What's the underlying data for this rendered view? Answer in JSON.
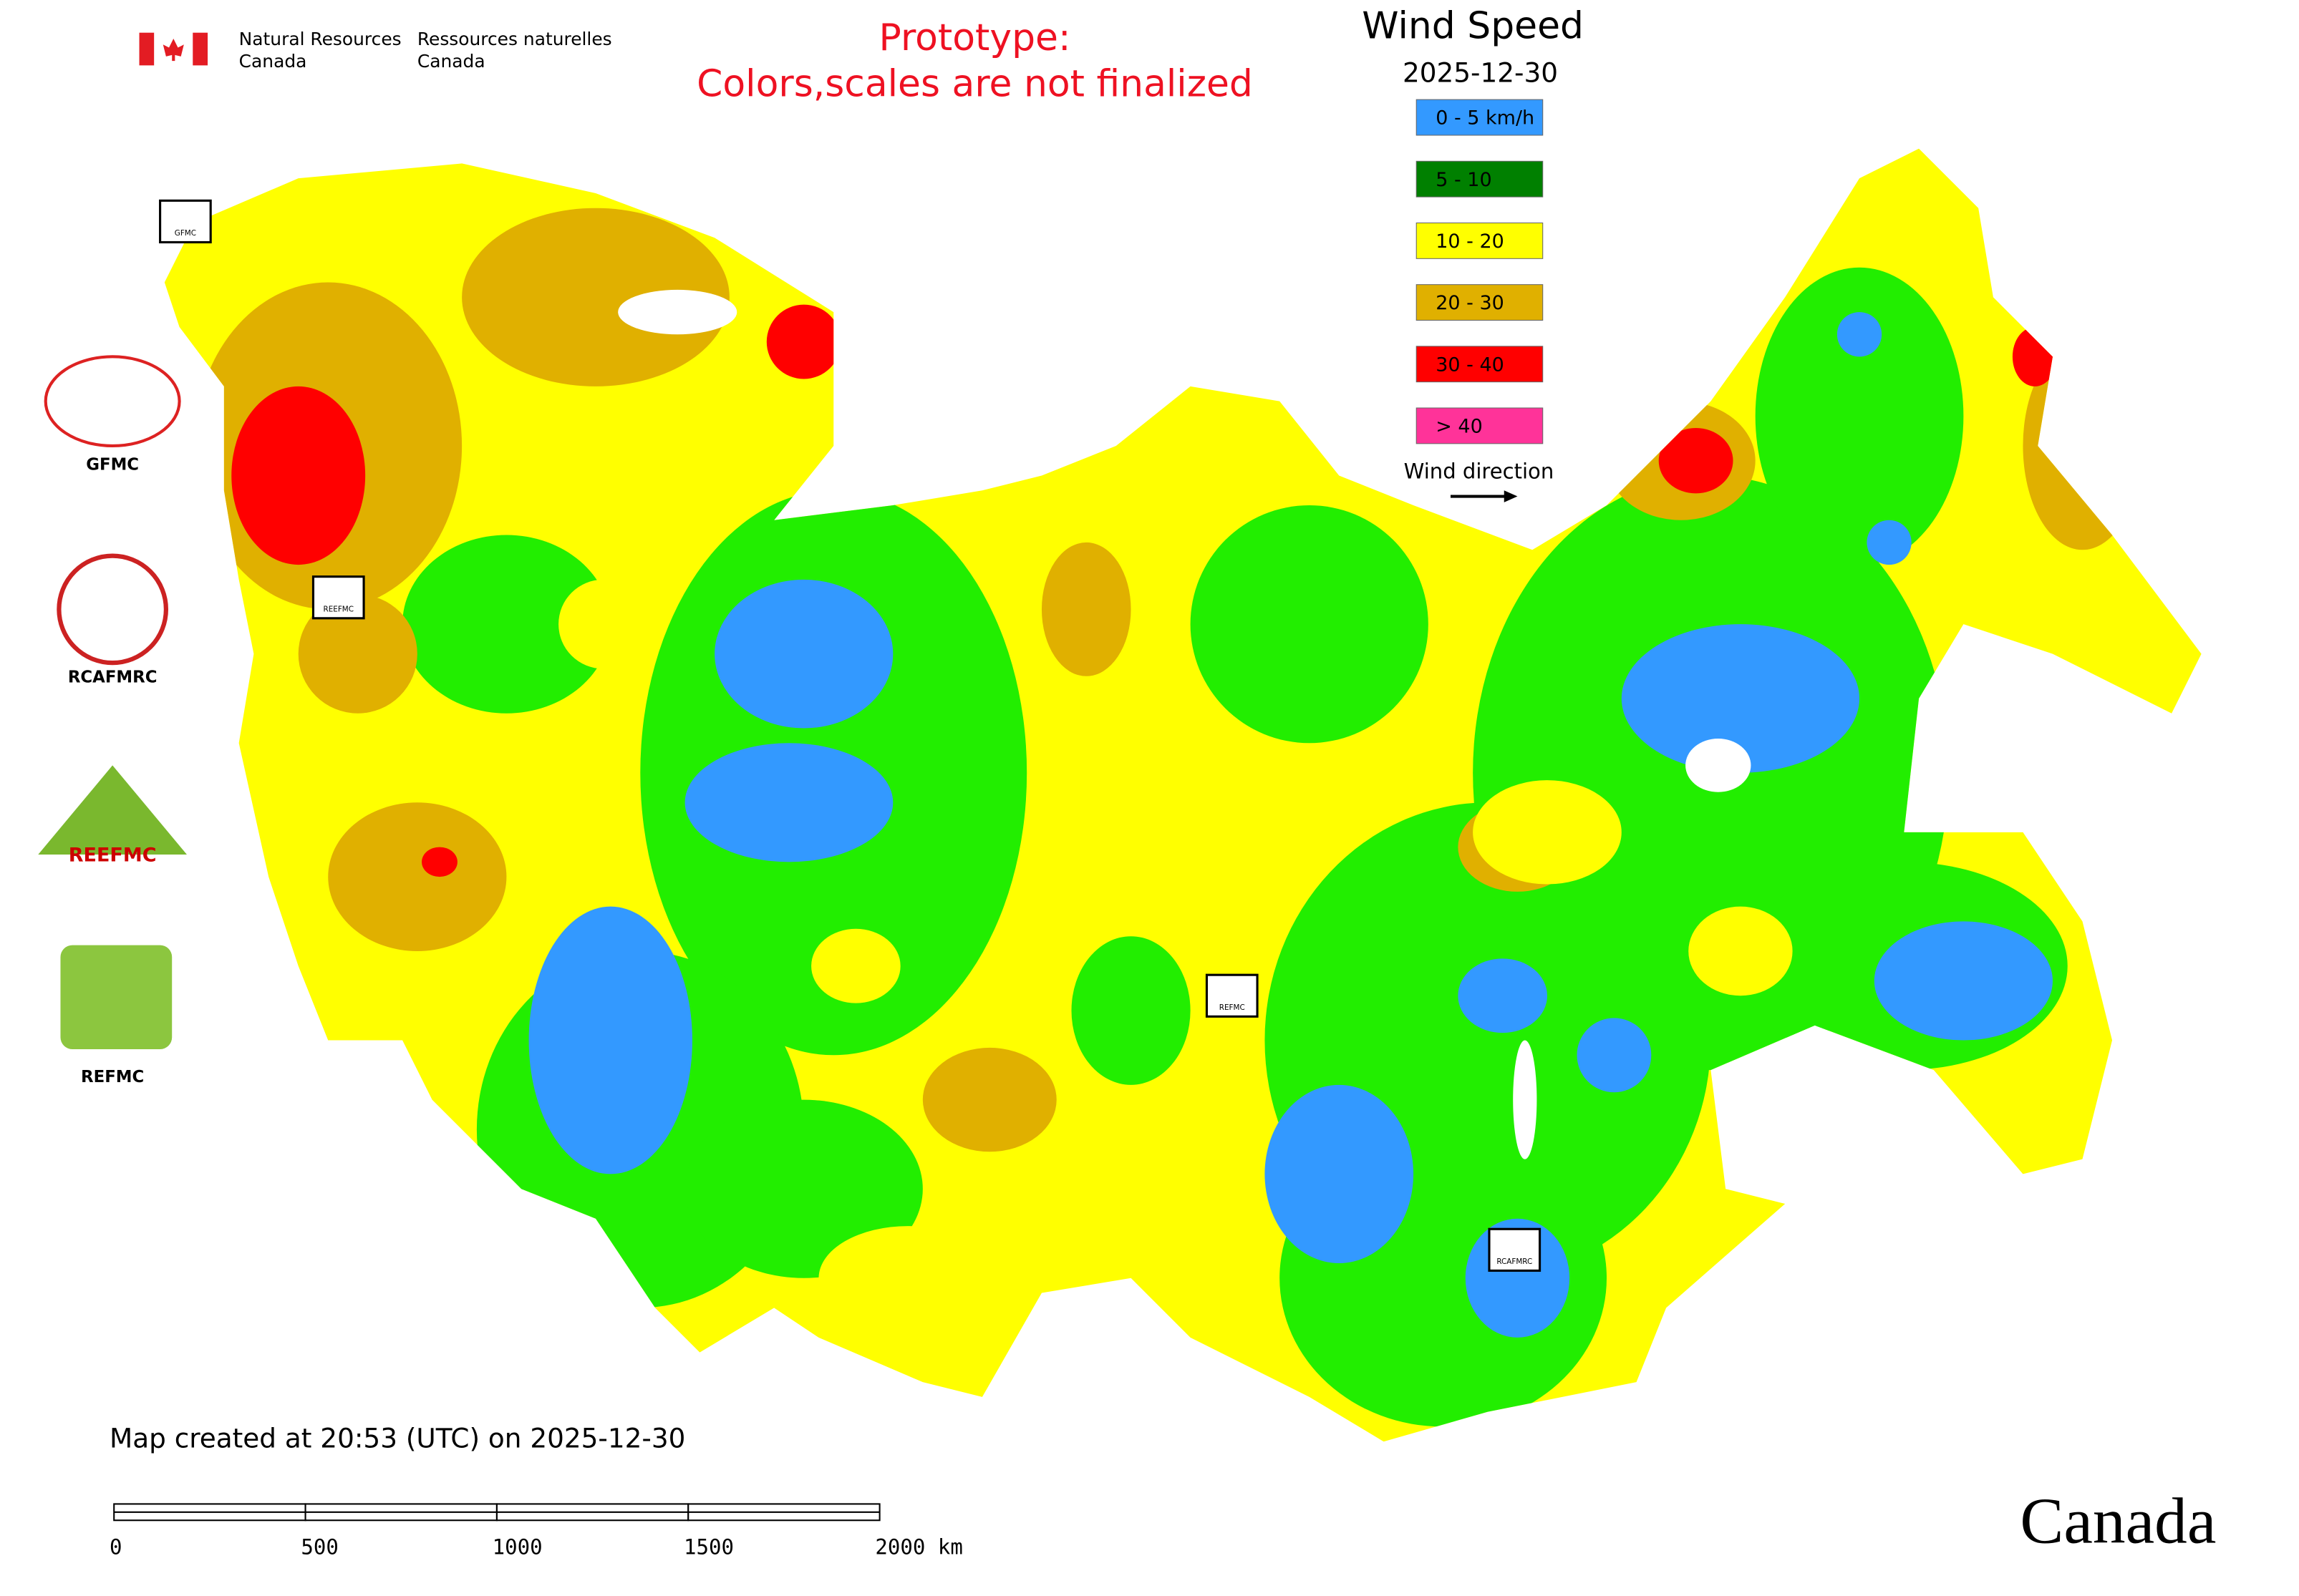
{
  "header": {
    "department_en": [
      "Natural Resources",
      "Canada"
    ],
    "department_fr": [
      "Ressources naturelles",
      "Canada"
    ],
    "notice": [
      "Prototype:",
      "Colors,scales are not finalized"
    ]
  },
  "map": {
    "title": "Wind Speed",
    "date": "2025-12-30",
    "legend": [
      {
        "label": "0 - 5 km/h",
        "color": "#3399ff"
      },
      {
        "label": "5 - 10",
        "color": "#008000"
      },
      {
        "label": "10 - 20",
        "color": "#ffff00"
      },
      {
        "label": "20 - 30",
        "color": "#e0b000"
      },
      {
        "label": "30 - 40",
        "color": "#ff0000"
      },
      {
        "label": "> 40",
        "color": "#ff3399"
      }
    ],
    "wind_direction": "Wind direction",
    "created": "Map created at 20:53 (UTC) on 2025-12-30",
    "scale_bar": [
      "0",
      "500",
      "1000",
      "1500",
      "2000 km"
    ],
    "markers": [
      "GFMC",
      "REEFMC",
      "REFMC",
      "RCAFMRC"
    ]
  },
  "logos": [
    "GFMC",
    "RCAFMRC",
    "REEFMC",
    "REFMC"
  ],
  "wordmark": "Canada"
}
